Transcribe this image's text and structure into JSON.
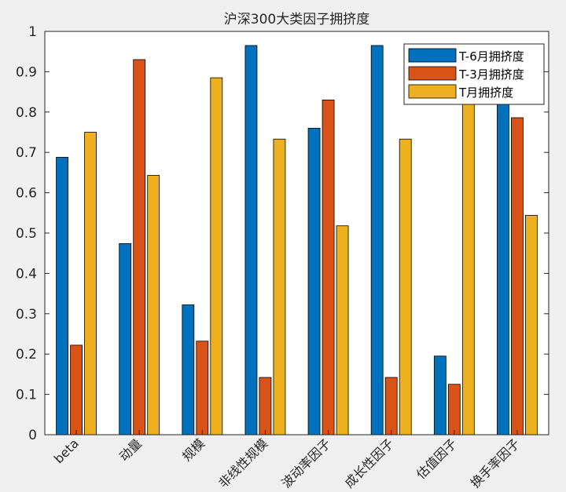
{
  "chart_data": {
    "type": "bar",
    "title": "沪深300大类因子拥挤度",
    "xlabel": "",
    "ylabel": "",
    "ylim": [
      0,
      1
    ],
    "yticks": [
      "0",
      "0.1",
      "0.2",
      "0.3",
      "0.4",
      "0.5",
      "0.6",
      "0.7",
      "0.8",
      "0.9",
      "1"
    ],
    "categories": [
      "beta",
      "动量",
      "规模",
      "非线性规模",
      "波动率因子",
      "成长性因子",
      "估值因子",
      "换手率因子"
    ],
    "series": [
      {
        "name": "T-6月拥挤度",
        "color": "#0072BD",
        "values": [
          0.688,
          0.474,
          0.322,
          0.965,
          0.76,
          0.965,
          0.195,
          0.84
        ]
      },
      {
        "name": "T-3月拥挤度",
        "color": "#D95319",
        "values": [
          0.222,
          0.93,
          0.232,
          0.142,
          0.83,
          0.142,
          0.125,
          0.786
        ]
      },
      {
        "name": "T月拥挤度",
        "color": "#EDB120",
        "values": [
          0.75,
          0.643,
          0.885,
          0.733,
          0.518,
          0.733,
          0.84,
          0.544
        ]
      }
    ],
    "legend_position": "top-right",
    "grid": false
  }
}
